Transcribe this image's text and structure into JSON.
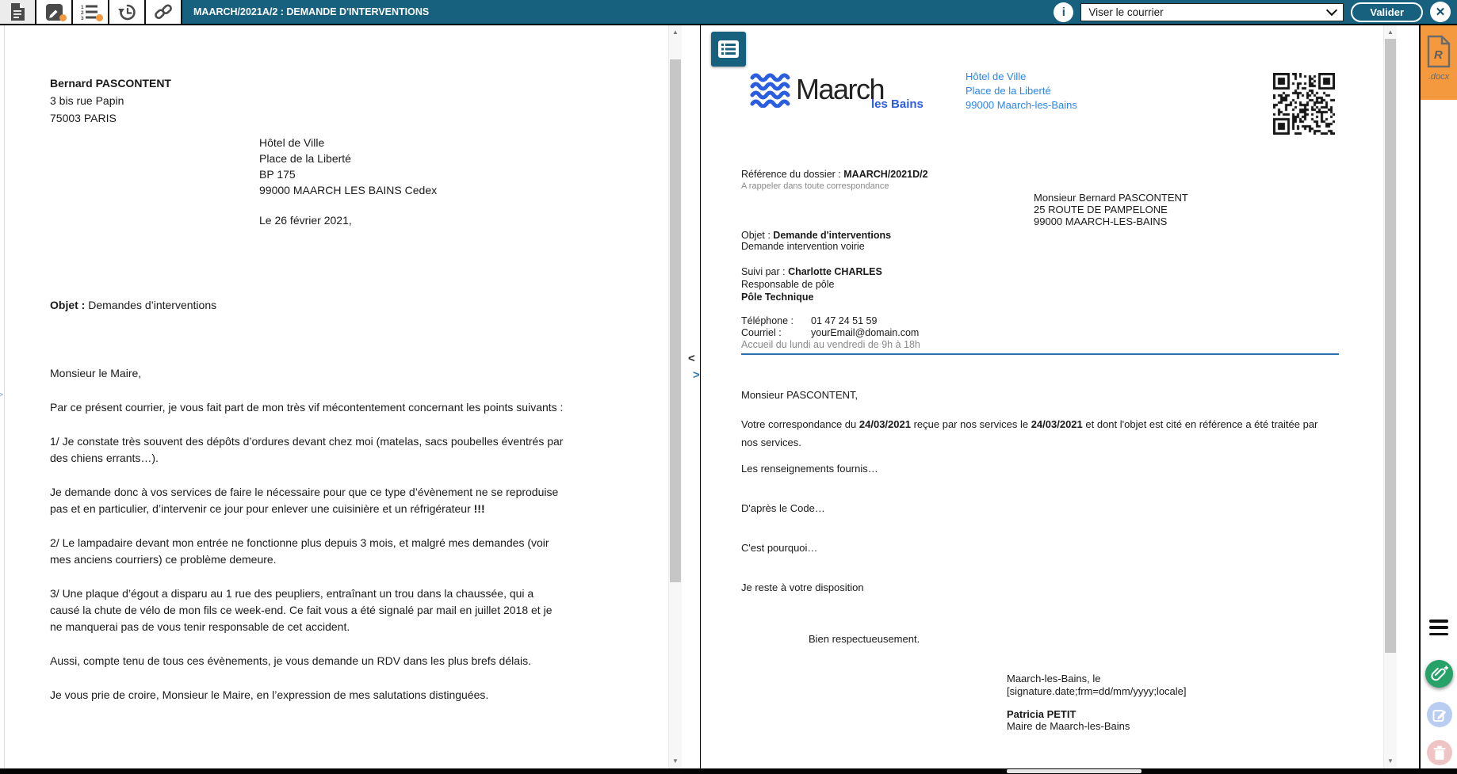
{
  "colors": {
    "primary_teal": "#17617F",
    "accent_orange": "#F4993E",
    "brand_blue": "#2A5DE0",
    "address_blue": "#2A85F0",
    "rule_blue": "#2C6FAD",
    "green_action": "#26A269",
    "light_blue_action": "#B9CCF2",
    "light_pink_action": "#EFC4C4"
  },
  "icons": {
    "info": "i",
    "close": "✕",
    "collapse_left": "<",
    "collapse_right": ">",
    "expand_right": "▷",
    "scroll_up": "▲",
    "scroll_down": "▼",
    "docx_letter": "R"
  },
  "topbar": {
    "title": "MAARCH/2021A/2 : DEMANDE D'INTERVENTIONS",
    "viser_select": "Viser le courrier",
    "valider": "Valider"
  },
  "left_document": {
    "sender_name": "Bernard PASCONTENT",
    "sender_address": [
      "3 bis rue Papin",
      "75003 PARIS"
    ],
    "recipient": [
      "Hôtel de Ville",
      "Place de la Liberté",
      "BP 175",
      "99000 MAARCH LES BAINS Cedex"
    ],
    "date_line": "Le 26 février 2021,",
    "subject_label": "Objet :",
    "subject": "Demandes d’interventions",
    "salutation": "Monsieur le Maire,",
    "p1": "Par ce présent courrier, je vous fait part de mon très vif mécontentement concernant les points suivants :",
    "p2": "1/ Je constate très souvent des dépôts d’ordures devant chez moi (matelas, sacs poubelles éventrés par des chiens errants…).",
    "p3": "Je demande donc à vos services de faire le nécessaire pour que ce type d’évènement ne se reproduise pas et en particulier, d’intervenir ce jour pour enlever une cuisinière et un réfrigérateur",
    "p3_emphasis": "!!!",
    "p4": "2/ Le lampadaire devant mon entrée ne fonctionne plus depuis 3 mois, et malgré mes demandes (voir mes anciens courriers) ce problème demeure.",
    "p5": "3/ Une plaque d’égout a disparu au 1 rue des peupliers, entraînant un trou dans la chaussée, qui a causé la chute de vélo de mon fils ce week-end. Ce fait vous a été signalé par mail en juillet 2018 et je ne manquerai pas de vous tenir responsable de cet accident.",
    "p6": "Aussi, compte tenu de tous ces évènements, je vous demande un RDV dans les plus brefs délais.",
    "p7": "Je vous prie de croire, Monsieur le Maire, en l’expression de mes salutations distinguées."
  },
  "right_document": {
    "brand": "Maarch",
    "brand_sub": "les Bains",
    "org_address": [
      "Hôtel de Ville",
      "Place de la Liberté",
      "99000 Maarch-les-Bains"
    ],
    "reference_label": "Référence du dossier : ",
    "reference": "MAARCH/2021D/2",
    "reference_note": "A rappeler dans toute correspondance",
    "recipient": [
      "Monsieur Bernard PASCONTENT",
      "25 ROUTE DE PAMPELONE",
      "99000 MAARCH-LES-BAINS"
    ],
    "subject_label": "Objet : ",
    "subject": "Demande d'interventions",
    "subject_detail": "Demande intervention voirie",
    "followup_label": "Suivi par : ",
    "followup_name": "Charlotte CHARLES",
    "followup_role": "Responsable de pôle",
    "followup_entity": "Pôle Technique",
    "phone_label": "Téléphone :",
    "phone": "01 47 24 51 59",
    "email_label": "Courriel :",
    "email": "yourEmail@domain.com",
    "hours": "Accueil du lundi au vendredi de 9h à 18h",
    "salutation": "Monsieur PASCONTENT,",
    "intro_1": "Votre correspondance du ",
    "intro_date1": "24/03/2021",
    "intro_2": " reçue par nos services le ",
    "intro_date2": "24/03/2021",
    "intro_3": " et dont l'objet est cité en référence a été traitée par nos services.",
    "p1": "Les renseignements fournis…",
    "p2": "D'après le Code…",
    "p3": "C'est pourquoi…",
    "p4": "Je reste à votre disposition",
    "closing": "Bien respectueusement.",
    "sig_place": "Maarch-les-Bains, le",
    "sig_date_field": "[signature.date;frm=dd/mm/yyyy;locale]",
    "signatory": "Patricia PETIT",
    "signatory_role": "Maire de Maarch-les-Bains"
  },
  "attachment_panel": {
    "file_label": ".docx"
  }
}
